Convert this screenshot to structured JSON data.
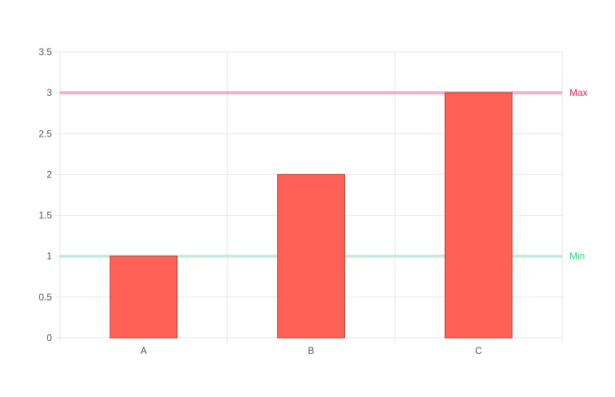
{
  "chart_data": {
    "type": "bar",
    "categories": [
      "A",
      "B",
      "C"
    ],
    "values": [
      1,
      2,
      3
    ],
    "title": "",
    "xlabel": "",
    "ylabel": "",
    "ylim": [
      0,
      3.5
    ],
    "yticks": [
      0,
      0.5,
      1,
      1.5,
      2,
      2.5,
      3,
      3.5
    ],
    "ytick_labels": [
      "0",
      "0.5",
      "1",
      "1.5",
      "2",
      "2.5",
      "3",
      "3.5"
    ],
    "grid": true,
    "legend": "none",
    "bar_color": "#ff6157",
    "bar_border_color": "#b23a33",
    "reference_lines": [
      {
        "label": "Max",
        "value": 3,
        "color": "#f7a9c0",
        "label_color": "#d81b60"
      },
      {
        "label": "Min",
        "value": 1,
        "color": "#c5ebd2",
        "label_color": "#2ecc71"
      }
    ]
  }
}
